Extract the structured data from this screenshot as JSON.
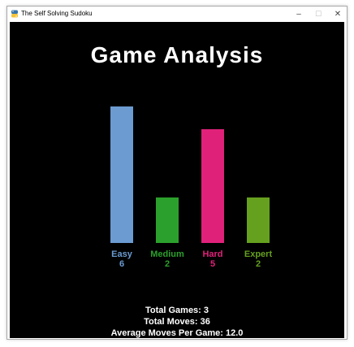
{
  "window": {
    "title": "The Self Solving Sudoku",
    "app_icon": "python-icon",
    "controls": {
      "minimize": "–",
      "maximize": "☐",
      "close": "✕"
    }
  },
  "game_title": "Game Analysis",
  "colors": {
    "background": "#000000",
    "text": "#ffffff",
    "easy": "#6b9bd1",
    "medium": "#2ca02c",
    "hard": "#e0217a",
    "expert": "#66a01f"
  },
  "chart_data": {
    "type": "bar",
    "categories": [
      "Easy",
      "Medium",
      "Hard",
      "Expert"
    ],
    "values": [
      6,
      2,
      5,
      2
    ],
    "value_labels": [
      "6",
      "2",
      "5",
      "2"
    ],
    "colors": [
      "#6b9bd1",
      "#2ca02c",
      "#e0217a",
      "#66a01f"
    ],
    "title": "",
    "xlabel": "",
    "ylabel": "",
    "ylim": [
      0,
      6
    ],
    "grid": false
  },
  "stats": {
    "total_games": "Total Games: 3",
    "total_moves": "Total Moves: 36",
    "average_moves": "Average Moves Per Game: 12.0"
  }
}
